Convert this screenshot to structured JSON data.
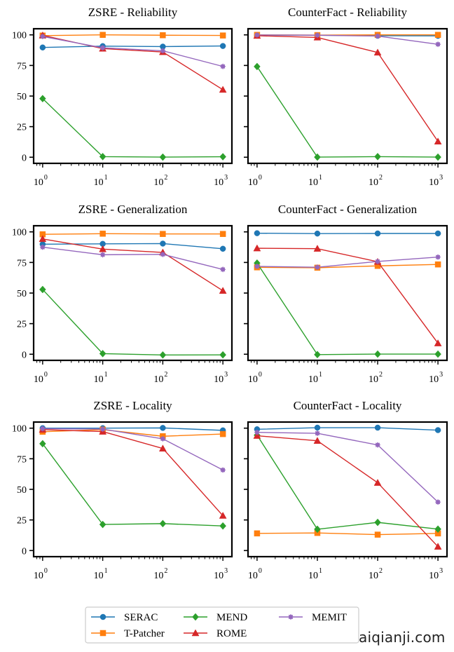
{
  "figure": {
    "watermark": "aiqianji.com"
  },
  "legend": {
    "placement": "bottom-center",
    "entries": [
      {
        "name": "SERAC",
        "color": "#1f77b4",
        "marker": "circle"
      },
      {
        "name": "T-Patcher",
        "color": "#ff7f0e",
        "marker": "square"
      },
      {
        "name": "MEND",
        "color": "#2ca02c",
        "marker": "diamond"
      },
      {
        "name": "ROME",
        "color": "#d62728",
        "marker": "triangle"
      },
      {
        "name": "MEMIT",
        "color": "#9467bd",
        "marker": "star"
      }
    ]
  },
  "chart_data": [
    {
      "type": "line",
      "title": "ZSRE - Reliability",
      "xscale": "log",
      "x": [
        1,
        10,
        100,
        1000
      ],
      "xticklabels": [
        [
          "10",
          "0"
        ],
        [
          "10",
          "1"
        ],
        [
          "10",
          "2"
        ],
        [
          "10",
          "3"
        ]
      ],
      "yticks": [
        0,
        25,
        50,
        75,
        100
      ],
      "show_yticklabels": true,
      "ylim": [
        -5,
        105
      ],
      "grid": false,
      "series": [
        {
          "name": "SERAC",
          "values": [
            89.7,
            90.8,
            90.4,
            90.9
          ]
        },
        {
          "name": "T-Patcher",
          "values": [
            99.4,
            100.0,
            99.7,
            99.5
          ]
        },
        {
          "name": "MEND",
          "values": [
            47.9,
            0.5,
            0.1,
            0.4
          ]
        },
        {
          "name": "ROME",
          "values": [
            99.6,
            88.8,
            86.0,
            55.2
          ]
        },
        {
          "name": "MEMIT",
          "values": [
            98.7,
            89.4,
            87.0,
            74.2
          ]
        }
      ]
    },
    {
      "type": "line",
      "title": "CounterFact - Reliability",
      "xscale": "log",
      "x": [
        1,
        10,
        100,
        1000
      ],
      "xticklabels": [
        [
          "10",
          "0"
        ],
        [
          "10",
          "1"
        ],
        [
          "10",
          "2"
        ],
        [
          "10",
          "3"
        ]
      ],
      "yticks": [
        0,
        25,
        50,
        75,
        100
      ],
      "show_yticklabels": false,
      "ylim": [
        -5,
        105
      ],
      "grid": false,
      "series": [
        {
          "name": "SERAC",
          "values": [
            99.8,
            99.7,
            99.3,
            99.2
          ]
        },
        {
          "name": "T-Patcher",
          "values": [
            100.0,
            99.8,
            100.0,
            100.0
          ]
        },
        {
          "name": "MEND",
          "values": [
            74.1,
            0.1,
            0.5,
            0.1
          ]
        },
        {
          "name": "ROME",
          "values": [
            99.3,
            97.9,
            85.6,
            12.9
          ]
        },
        {
          "name": "MEMIT",
          "values": [
            99.9,
            99.7,
            99.0,
            92.3
          ]
        }
      ]
    },
    {
      "type": "line",
      "title": "ZSRE - Generalization",
      "xscale": "log",
      "x": [
        1,
        10,
        100,
        1000
      ],
      "xticklabels": [
        [
          "10",
          "0"
        ],
        [
          "10",
          "1"
        ],
        [
          "10",
          "2"
        ],
        [
          "10",
          "3"
        ]
      ],
      "yticks": [
        0,
        25,
        50,
        75,
        100
      ],
      "show_yticklabels": true,
      "ylim": [
        -5,
        105
      ],
      "grid": false,
      "series": [
        {
          "name": "SERAC",
          "values": [
            89.9,
            90.2,
            90.4,
            86.2
          ]
        },
        {
          "name": "T-Patcher",
          "values": [
            98.0,
            98.5,
            98.3,
            98.3
          ]
        },
        {
          "name": "MEND",
          "values": [
            52.9,
            0.5,
            -0.6,
            -0.5
          ]
        },
        {
          "name": "ROME",
          "values": [
            94.2,
            85.9,
            83.2,
            51.9
          ]
        },
        {
          "name": "MEMIT",
          "values": [
            87.5,
            81.3,
            81.6,
            69.3
          ]
        }
      ]
    },
    {
      "type": "line",
      "title": "CounterFact - Generalization",
      "xscale": "log",
      "x": [
        1,
        10,
        100,
        1000
      ],
      "xticklabels": [
        [
          "10",
          "0"
        ],
        [
          "10",
          "1"
        ],
        [
          "10",
          "2"
        ],
        [
          "10",
          "3"
        ]
      ],
      "yticks": [
        0,
        25,
        50,
        75,
        100
      ],
      "show_yticklabels": false,
      "ylim": [
        -5,
        105
      ],
      "grid": false,
      "series": [
        {
          "name": "SERAC",
          "values": [
            98.9,
            98.6,
            98.7,
            98.7
          ]
        },
        {
          "name": "T-Patcher",
          "values": [
            71.0,
            70.7,
            72.2,
            73.4
          ]
        },
        {
          "name": "MEND",
          "values": [
            74.5,
            -0.3,
            0.1,
            0.1
          ]
        },
        {
          "name": "ROME",
          "values": [
            86.6,
            86.3,
            75.6,
            9.0
          ]
        },
        {
          "name": "MEMIT",
          "values": [
            71.8,
            71.1,
            75.8,
            79.4
          ]
        }
      ]
    },
    {
      "type": "line",
      "title": "ZSRE - Locality",
      "xscale": "log",
      "x": [
        1,
        10,
        100,
        1000
      ],
      "xticklabels": [
        [
          "10",
          "0"
        ],
        [
          "10",
          "1"
        ],
        [
          "10",
          "2"
        ],
        [
          "10",
          "3"
        ]
      ],
      "yticks": [
        0,
        25,
        50,
        75,
        100
      ],
      "show_yticklabels": true,
      "ylim": [
        -5,
        105
      ],
      "grid": false,
      "series": [
        {
          "name": "SERAC",
          "values": [
            100.0,
            100.0,
            100.2,
            98.2
          ]
        },
        {
          "name": "T-Patcher",
          "values": [
            97.1,
            98.8,
            93.4,
            95.2
          ]
        },
        {
          "name": "MEND",
          "values": [
            87.3,
            21.3,
            22.0,
            20.1
          ]
        },
        {
          "name": "ROME",
          "values": [
            98.8,
            97.2,
            83.4,
            28.5
          ]
        },
        {
          "name": "MEMIT",
          "values": [
            99.6,
            99.2,
            91.3,
            65.8
          ]
        }
      ]
    },
    {
      "type": "line",
      "title": "CounterFact - Locality",
      "xscale": "log",
      "x": [
        1,
        10,
        100,
        1000
      ],
      "xticklabels": [
        [
          "10",
          "0"
        ],
        [
          "10",
          "1"
        ],
        [
          "10",
          "2"
        ],
        [
          "10",
          "3"
        ]
      ],
      "yticks": [
        0,
        25,
        50,
        75,
        100
      ],
      "show_yticklabels": false,
      "ylim": [
        -5,
        105
      ],
      "grid": false,
      "series": [
        {
          "name": "SERAC",
          "values": [
            99.1,
            100.4,
            100.4,
            98.4
          ]
        },
        {
          "name": "T-Patcher",
          "values": [
            14.0,
            14.4,
            13.0,
            14.0
          ]
        },
        {
          "name": "MEND",
          "values": [
            94.3,
            17.4,
            23.0,
            17.5
          ]
        },
        {
          "name": "ROME",
          "values": [
            93.8,
            89.7,
            55.4,
            3.2
          ]
        },
        {
          "name": "MEMIT",
          "values": [
            96.6,
            95.8,
            86.3,
            39.6
          ]
        }
      ]
    }
  ]
}
